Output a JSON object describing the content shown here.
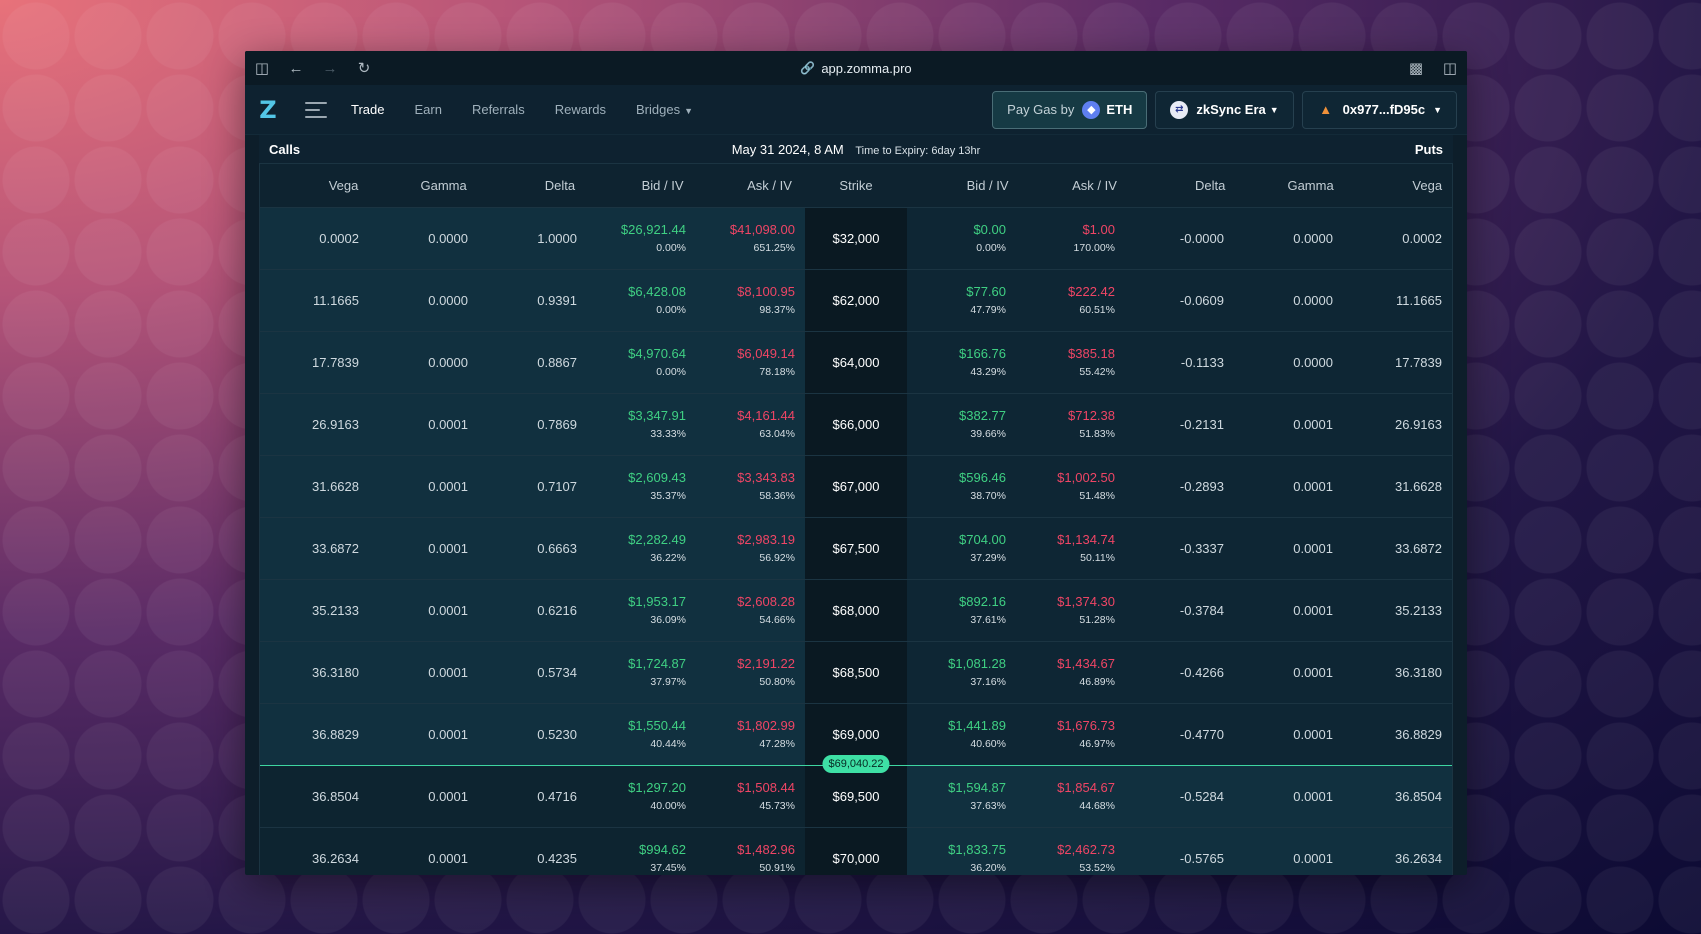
{
  "browser": {
    "url": "app.zomma.pro"
  },
  "nav": {
    "logo": "Z",
    "links": [
      {
        "label": "Trade",
        "active": true
      },
      {
        "label": "Earn",
        "active": false
      },
      {
        "label": "Referrals",
        "active": false
      },
      {
        "label": "Rewards",
        "active": false
      },
      {
        "label": "Bridges",
        "active": false
      }
    ],
    "gas_label": "Pay Gas by",
    "gas_token": "ETH",
    "network": "zkSync Era",
    "wallet": "0x977...fD95c"
  },
  "chain": {
    "calls_label": "Calls",
    "puts_label": "Puts",
    "expiry_date": "May 31 2024, 8 AM",
    "time_to_expiry": "Time to Expiry: 6day 13hr",
    "spot_price": "$69,040.22",
    "spot_after_row": 8,
    "columns": [
      "Vega",
      "Gamma",
      "Delta",
      "Bid / IV",
      "Ask / IV",
      "Strike",
      "Bid / IV",
      "Ask / IV",
      "Delta",
      "Gamma",
      "Vega"
    ],
    "rows": [
      {
        "c_vega": "0.0002",
        "c_gamma": "0.0000",
        "c_delta": "1.0000",
        "c_bid": "$26,921.44",
        "c_bid_iv": "0.00%",
        "c_ask": "$41,098.00",
        "c_ask_iv": "651.25%",
        "strike": "$32,000",
        "p_bid": "$0.00",
        "p_bid_iv": "0.00%",
        "p_ask": "$1.00",
        "p_ask_iv": "170.00%",
        "p_delta": "-0.0000",
        "p_gamma": "0.0000",
        "p_vega": "0.0002"
      },
      {
        "c_vega": "11.1665",
        "c_gamma": "0.0000",
        "c_delta": "0.9391",
        "c_bid": "$6,428.08",
        "c_bid_iv": "0.00%",
        "c_ask": "$8,100.95",
        "c_ask_iv": "98.37%",
        "strike": "$62,000",
        "p_bid": "$77.60",
        "p_bid_iv": "47.79%",
        "p_ask": "$222.42",
        "p_ask_iv": "60.51%",
        "p_delta": "-0.0609",
        "p_gamma": "0.0000",
        "p_vega": "11.1665"
      },
      {
        "c_vega": "17.7839",
        "c_gamma": "0.0000",
        "c_delta": "0.8867",
        "c_bid": "$4,970.64",
        "c_bid_iv": "0.00%",
        "c_ask": "$6,049.14",
        "c_ask_iv": "78.18%",
        "strike": "$64,000",
        "p_bid": "$166.76",
        "p_bid_iv": "43.29%",
        "p_ask": "$385.18",
        "p_ask_iv": "55.42%",
        "p_delta": "-0.1133",
        "p_gamma": "0.0000",
        "p_vega": "17.7839"
      },
      {
        "c_vega": "26.9163",
        "c_gamma": "0.0001",
        "c_delta": "0.7869",
        "c_bid": "$3,347.91",
        "c_bid_iv": "33.33%",
        "c_ask": "$4,161.44",
        "c_ask_iv": "63.04%",
        "strike": "$66,000",
        "p_bid": "$382.77",
        "p_bid_iv": "39.66%",
        "p_ask": "$712.38",
        "p_ask_iv": "51.83%",
        "p_delta": "-0.2131",
        "p_gamma": "0.0001",
        "p_vega": "26.9163"
      },
      {
        "c_vega": "31.6628",
        "c_gamma": "0.0001",
        "c_delta": "0.7107",
        "c_bid": "$2,609.43",
        "c_bid_iv": "35.37%",
        "c_ask": "$3,343.83",
        "c_ask_iv": "58.36%",
        "strike": "$67,000",
        "p_bid": "$596.46",
        "p_bid_iv": "38.70%",
        "p_ask": "$1,002.50",
        "p_ask_iv": "51.48%",
        "p_delta": "-0.2893",
        "p_gamma": "0.0001",
        "p_vega": "31.6628"
      },
      {
        "c_vega": "33.6872",
        "c_gamma": "0.0001",
        "c_delta": "0.6663",
        "c_bid": "$2,282.49",
        "c_bid_iv": "36.22%",
        "c_ask": "$2,983.19",
        "c_ask_iv": "56.92%",
        "strike": "$67,500",
        "p_bid": "$704.00",
        "p_bid_iv": "37.29%",
        "p_ask": "$1,134.74",
        "p_ask_iv": "50.11%",
        "p_delta": "-0.3337",
        "p_gamma": "0.0001",
        "p_vega": "33.6872"
      },
      {
        "c_vega": "35.2133",
        "c_gamma": "0.0001",
        "c_delta": "0.6216",
        "c_bid": "$1,953.17",
        "c_bid_iv": "36.09%",
        "c_ask": "$2,608.28",
        "c_ask_iv": "54.66%",
        "strike": "$68,000",
        "p_bid": "$892.16",
        "p_bid_iv": "37.61%",
        "p_ask": "$1,374.30",
        "p_ask_iv": "51.28%",
        "p_delta": "-0.3784",
        "p_gamma": "0.0001",
        "p_vega": "35.2133"
      },
      {
        "c_vega": "36.3180",
        "c_gamma": "0.0001",
        "c_delta": "0.5734",
        "c_bid": "$1,724.87",
        "c_bid_iv": "37.97%",
        "c_ask": "$2,191.22",
        "c_ask_iv": "50.80%",
        "strike": "$68,500",
        "p_bid": "$1,081.28",
        "p_bid_iv": "37.16%",
        "p_ask": "$1,434.67",
        "p_ask_iv": "46.89%",
        "p_delta": "-0.4266",
        "p_gamma": "0.0001",
        "p_vega": "36.3180"
      },
      {
        "c_vega": "36.8829",
        "c_gamma": "0.0001",
        "c_delta": "0.5230",
        "c_bid": "$1,550.44",
        "c_bid_iv": "40.44%",
        "c_ask": "$1,802.99",
        "c_ask_iv": "47.28%",
        "strike": "$69,000",
        "p_bid": "$1,441.89",
        "p_bid_iv": "40.60%",
        "p_ask": "$1,676.73",
        "p_ask_iv": "46.97%",
        "p_delta": "-0.4770",
        "p_gamma": "0.0001",
        "p_vega": "36.8829"
      },
      {
        "c_vega": "36.8504",
        "c_gamma": "0.0001",
        "c_delta": "0.4716",
        "c_bid": "$1,297.20",
        "c_bid_iv": "40.00%",
        "c_ask": "$1,508.44",
        "c_ask_iv": "45.73%",
        "strike": "$69,500",
        "p_bid": "$1,594.87",
        "p_bid_iv": "37.63%",
        "p_ask": "$1,854.67",
        "p_ask_iv": "44.68%",
        "p_delta": "-0.5284",
        "p_gamma": "0.0001",
        "p_vega": "36.8504"
      },
      {
        "c_vega": "36.2634",
        "c_gamma": "0.0001",
        "c_delta": "0.4235",
        "c_bid": "$994.62",
        "c_bid_iv": "37.45%",
        "c_ask": "$1,482.96",
        "c_ask_iv": "50.91%",
        "strike": "$70,000",
        "p_bid": "$1,833.75",
        "p_bid_iv": "36.20%",
        "p_ask": "$2,462.73",
        "p_ask_iv": "53.52%",
        "p_delta": "-0.5765",
        "p_gamma": "0.0001",
        "p_vega": "36.2634"
      }
    ]
  },
  "colors": {
    "bid": "#3fd083",
    "ask": "#ef4565",
    "spot": "#3ee0a5"
  },
  "icons": {
    "sidebar_toggle": "sidebar-icon",
    "back": "arrow-left-icon",
    "forward": "arrow-right-icon",
    "reload": "reload-icon",
    "link": "link-icon",
    "extension": "extension-icon",
    "split": "split-view-icon"
  }
}
